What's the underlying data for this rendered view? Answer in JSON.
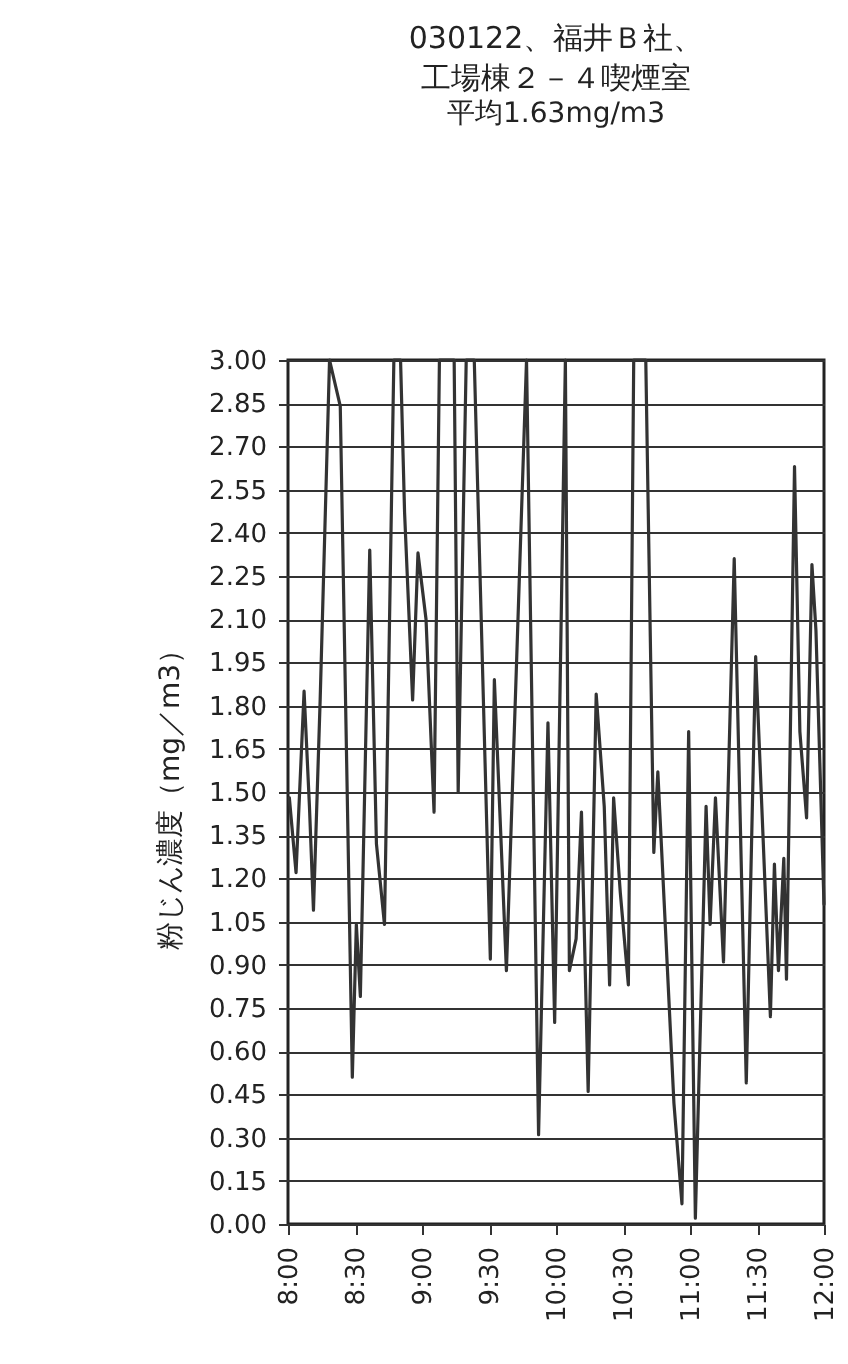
{
  "chart_data": {
    "type": "line",
    "title": "030122、福井Ｂ社、工場棟２－４喫煙室",
    "subtitle": "平均1.63mg/m3",
    "ylabel": "粉じん濃度（mg／m3）",
    "x": [
      8.01,
      8.06,
      8.12,
      8.16,
      8.19,
      8.24,
      8.31,
      8.39,
      8.48,
      8.51,
      8.54,
      8.61,
      8.66,
      8.72,
      8.79,
      8.84,
      8.87,
      8.93,
      8.97,
      9.03,
      9.09,
      9.13,
      9.24,
      9.27,
      9.33,
      9.39,
      9.51,
      9.54,
      9.63,
      9.78,
      9.87,
      9.94,
      9.99,
      10.07,
      10.1,
      10.15,
      10.19,
      10.24,
      10.3,
      10.36,
      10.4,
      10.43,
      10.48,
      10.54,
      10.58,
      10.67,
      10.73,
      10.76,
      10.88,
      10.94,
      10.99,
      11.04,
      11.12,
      11.15,
      11.19,
      11.25,
      11.33,
      11.42,
      11.49,
      11.6,
      11.63,
      11.66,
      11.7,
      11.72,
      11.78,
      11.82,
      11.87,
      11.91,
      11.94,
      12.0
    ],
    "series": [
      {
        "color": "#333333",
        "values": [
          1.48,
          1.22,
          1.85,
          1.45,
          1.09,
          1.82,
          3.0,
          2.84,
          0.51,
          1.04,
          0.79,
          2.34,
          1.32,
          1.04,
          3.0,
          3.0,
          2.47,
          1.82,
          2.33,
          2.1,
          1.43,
          3.0,
          3.0,
          1.5,
          3.0,
          3.0,
          0.92,
          1.89,
          0.88,
          3.0,
          0.31,
          1.74,
          0.7,
          3.0,
          0.88,
          0.99,
          1.43,
          0.46,
          1.84,
          1.45,
          0.83,
          1.48,
          1.15,
          0.83,
          3.0,
          3.0,
          1.29,
          1.57,
          0.42,
          0.07,
          1.71,
          0.02,
          1.45,
          1.04,
          1.48,
          0.91,
          2.31,
          0.49,
          1.97,
          0.72,
          1.25,
          0.88,
          1.27,
          0.85,
          2.63,
          1.71,
          1.41,
          2.29,
          2.06,
          1.11
        ]
      }
    ],
    "xlim": [
      8,
      12
    ],
    "xticks": [
      {
        "value": 8,
        "label": "8:00"
      },
      {
        "value": 8.5,
        "label": "8:30"
      },
      {
        "value": 9,
        "label": "9:00"
      },
      {
        "value": 9.5,
        "label": "9:30"
      },
      {
        "value": 10,
        "label": "10:00"
      },
      {
        "value": 10.5,
        "label": "10:30"
      },
      {
        "value": 11,
        "label": "11:00"
      },
      {
        "value": 11.5,
        "label": "11:30"
      },
      {
        "value": 12,
        "label": "12:00"
      }
    ],
    "ylim": [
      0,
      3
    ],
    "yticks": [
      {
        "value": 0,
        "label": "0.00"
      },
      {
        "value": 0.15,
        "label": "0.15"
      },
      {
        "value": 0.3,
        "label": "0.30"
      },
      {
        "value": 0.45,
        "label": "0.45"
      },
      {
        "value": 0.6,
        "label": "0.60"
      },
      {
        "value": 0.75,
        "label": "0.75"
      },
      {
        "value": 0.9,
        "label": "0.90"
      },
      {
        "value": 1.05,
        "label": "1.05"
      },
      {
        "value": 1.2,
        "label": "1.20"
      },
      {
        "value": 1.35,
        "label": "1.35"
      },
      {
        "value": 1.5,
        "label": "1.50"
      },
      {
        "value": 1.65,
        "label": "1.65"
      },
      {
        "value": 1.8,
        "label": "1.80"
      },
      {
        "value": 1.95,
        "label": "1.95"
      },
      {
        "value": 2.1,
        "label": "2.10"
      },
      {
        "value": 2.25,
        "label": "2.25"
      },
      {
        "value": 2.4,
        "label": "2.40"
      },
      {
        "value": 2.55,
        "label": "2.55"
      },
      {
        "value": 2.7,
        "label": "2.70"
      },
      {
        "value": 2.85,
        "label": "2.85"
      },
      {
        "value": 3,
        "label": "3.00"
      }
    ],
    "grid": "y",
    "marker": "none",
    "line_style": "solid"
  }
}
